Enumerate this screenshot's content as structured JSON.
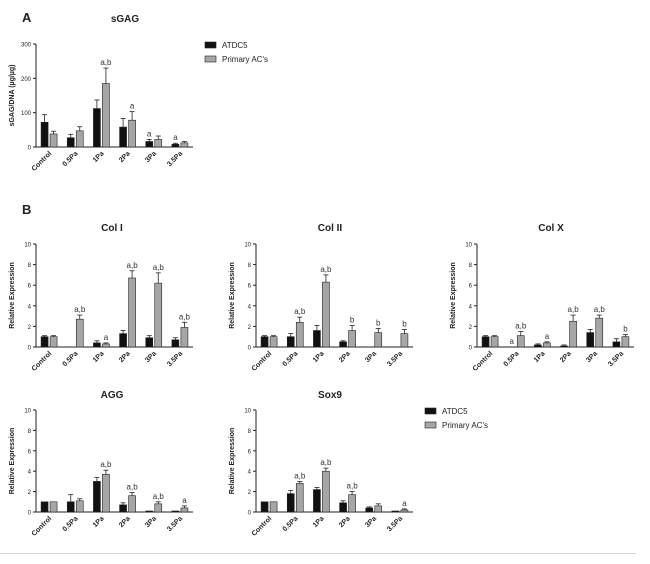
{
  "panels": [
    {
      "label": "A"
    },
    {
      "label": "B"
    }
  ],
  "legend": {
    "entries": [
      {
        "name": "ATDC5",
        "color": "#111111"
      },
      {
        "name": "Primary AC's",
        "color": "#a6a6a6"
      }
    ]
  },
  "chart_data": [
    {
      "type": "bar",
      "title": "sGAG",
      "ylabel": "sGAG/DNA (µg/µg)",
      "ylim": [
        0,
        300
      ],
      "yticks": [
        0,
        100,
        200,
        300
      ],
      "categories": [
        "Control",
        "0.5Pa",
        "1Pa",
        "2Pa",
        "3Pa",
        "3.5Pa"
      ],
      "series": [
        {
          "name": "ATDC5",
          "values": [
            72,
            27,
            112,
            58,
            16,
            8
          ],
          "errors": [
            22,
            10,
            25,
            25,
            6,
            3
          ]
        },
        {
          "name": "Primary AC's",
          "values": [
            38,
            47,
            185,
            78,
            22,
            12
          ],
          "errors": [
            8,
            12,
            45,
            25,
            10,
            4
          ]
        }
      ],
      "annotations": [
        {
          "category": "1Pa",
          "series": "Primary AC's",
          "text": "a,b"
        },
        {
          "category": "2Pa",
          "series": "Primary AC's",
          "text": "a"
        },
        {
          "category": "3Pa",
          "series": "ATDC5",
          "text": "a"
        },
        {
          "category": "3.5Pa",
          "series": "ATDC5",
          "text": "a"
        }
      ]
    },
    {
      "type": "bar",
      "title": "Col I",
      "ylabel": "Relative Expression",
      "ylim": [
        0,
        10
      ],
      "yticks": [
        0,
        2,
        4,
        6,
        8,
        10
      ],
      "categories": [
        "Control",
        "0.5Pa",
        "1Pa",
        "2Pa",
        "3Pa",
        "3.5Pa"
      ],
      "series": [
        {
          "name": "ATDC5",
          "values": [
            1.0,
            0.0,
            0.4,
            1.3,
            0.9,
            0.7
          ],
          "errors": [
            0.1,
            0.0,
            0.2,
            0.3,
            0.2,
            0.2
          ]
        },
        {
          "name": "Primary AC's",
          "values": [
            1.0,
            2.7,
            0.3,
            6.7,
            6.2,
            1.9
          ],
          "errors": [
            0.1,
            0.4,
            0.1,
            0.7,
            1.0,
            0.5
          ]
        }
      ],
      "annotations": [
        {
          "category": "0.5Pa",
          "series": "Primary AC's",
          "text": "a,b"
        },
        {
          "category": "1Pa",
          "series": "Primary AC's",
          "text": "a"
        },
        {
          "category": "2Pa",
          "series": "Primary AC's",
          "text": "a,b"
        },
        {
          "category": "3Pa",
          "series": "Primary AC's",
          "text": "a,b"
        },
        {
          "category": "3.5Pa",
          "series": "Primary AC's",
          "text": "a,b"
        }
      ]
    },
    {
      "type": "bar",
      "title": "Col II",
      "ylabel": "Relative Expression",
      "ylim": [
        0,
        10
      ],
      "yticks": [
        0,
        2,
        4,
        6,
        8,
        10
      ],
      "categories": [
        "Control",
        "0.5Pa",
        "1Pa",
        "2Pa",
        "3Pa",
        "3.5Pa"
      ],
      "series": [
        {
          "name": "ATDC5",
          "values": [
            1.0,
            1.0,
            1.6,
            0.5,
            0.0,
            0.0
          ],
          "errors": [
            0.1,
            0.3,
            0.5,
            0.1,
            0.0,
            0.0
          ]
        },
        {
          "name": "Primary AC's",
          "values": [
            1.0,
            2.4,
            6.3,
            1.6,
            1.4,
            1.3
          ],
          "errors": [
            0.1,
            0.5,
            0.7,
            0.5,
            0.4,
            0.4
          ]
        }
      ],
      "annotations": [
        {
          "category": "0.5Pa",
          "series": "Primary AC's",
          "text": "a,b"
        },
        {
          "category": "1Pa",
          "series": "Primary AC's",
          "text": "a,b"
        },
        {
          "category": "2Pa",
          "series": "Primary AC's",
          "text": "b"
        },
        {
          "category": "3Pa",
          "series": "Primary AC's",
          "text": "b"
        },
        {
          "category": "3.5Pa",
          "series": "Primary AC's",
          "text": "b"
        }
      ]
    },
    {
      "type": "bar",
      "title": "Col X",
      "ylabel": "Relative Expression",
      "ylim": [
        0,
        10
      ],
      "yticks": [
        0,
        2,
        4,
        6,
        8,
        10
      ],
      "categories": [
        "Control",
        "0.5Pa",
        "1Pa",
        "2Pa",
        "3Pa",
        "3.5Pa"
      ],
      "series": [
        {
          "name": "ATDC5",
          "values": [
            1.0,
            0.0,
            0.2,
            0.1,
            1.4,
            0.5
          ],
          "errors": [
            0.1,
            0.0,
            0.1,
            0.1,
            0.3,
            0.3
          ]
        },
        {
          "name": "Primary AC's",
          "values": [
            1.0,
            1.1,
            0.4,
            2.5,
            2.8,
            1.0
          ],
          "errors": [
            0.1,
            0.4,
            0.1,
            0.6,
            0.3,
            0.2
          ]
        }
      ],
      "annotations": [
        {
          "category": "0.5Pa",
          "series": "ATDC5",
          "text": "a"
        },
        {
          "category": "0.5Pa",
          "series": "Primary AC's",
          "text": "a,b"
        },
        {
          "category": "1Pa",
          "series": "Primary AC's",
          "text": "a"
        },
        {
          "category": "2Pa",
          "series": "Primary AC's",
          "text": "a,b"
        },
        {
          "category": "3Pa",
          "series": "Primary AC's",
          "text": "a,b"
        },
        {
          "category": "3.5Pa",
          "series": "Primary AC's",
          "text": "b"
        }
      ]
    },
    {
      "type": "bar",
      "title": "AGG",
      "ylabel": "Relative Expression",
      "ylim": [
        0,
        10
      ],
      "yticks": [
        0,
        2,
        4,
        6,
        8,
        10
      ],
      "categories": [
        "Control",
        "0.5Pa",
        "1Pa",
        "2Pa",
        "3Pa",
        "3.5Pa"
      ],
      "series": [
        {
          "name": "ATDC5",
          "values": [
            1.0,
            1.0,
            3.0,
            0.7,
            0.1,
            0.1
          ],
          "errors": [
            0.0,
            0.7,
            0.4,
            0.2,
            0.0,
            0.0
          ]
        },
        {
          "name": "Primary AC's",
          "values": [
            1.0,
            1.1,
            3.7,
            1.6,
            0.8,
            0.4
          ],
          "errors": [
            0.0,
            0.2,
            0.4,
            0.3,
            0.2,
            0.2
          ]
        }
      ],
      "annotations": [
        {
          "category": "1Pa",
          "series": "Primary AC's",
          "text": "a,b"
        },
        {
          "category": "2Pa",
          "series": "Primary AC's",
          "text": "a,b"
        },
        {
          "category": "3Pa",
          "series": "Primary AC's",
          "text": "a,b"
        },
        {
          "category": "3.5Pa",
          "series": "Primary AC's",
          "text": "a"
        }
      ]
    },
    {
      "type": "bar",
      "title": "Sox9",
      "ylabel": "Relative Expression",
      "ylim": [
        0,
        10
      ],
      "yticks": [
        0,
        2,
        4,
        6,
        8,
        10
      ],
      "categories": [
        "Control",
        "0.5Pa",
        "1Pa",
        "2Pa",
        "3Pa",
        "3.5Pa"
      ],
      "series": [
        {
          "name": "ATDC5",
          "values": [
            1.0,
            1.8,
            2.2,
            0.9,
            0.4,
            0.1
          ],
          "errors": [
            0.0,
            0.3,
            0.2,
            0.2,
            0.1,
            0.0
          ]
        },
        {
          "name": "Primary AC's",
          "values": [
            1.0,
            2.8,
            4.0,
            1.7,
            0.6,
            0.2
          ],
          "errors": [
            0.0,
            0.2,
            0.3,
            0.3,
            0.2,
            0.1
          ]
        }
      ],
      "annotations": [
        {
          "category": "0.5Pa",
          "series": "Primary AC's",
          "text": "a,b"
        },
        {
          "category": "1Pa",
          "series": "Primary AC's",
          "text": "a,b"
        },
        {
          "category": "2Pa",
          "series": "Primary AC's",
          "text": "a,b"
        },
        {
          "category": "3.5Pa",
          "series": "Primary AC's",
          "text": "a"
        }
      ]
    }
  ]
}
